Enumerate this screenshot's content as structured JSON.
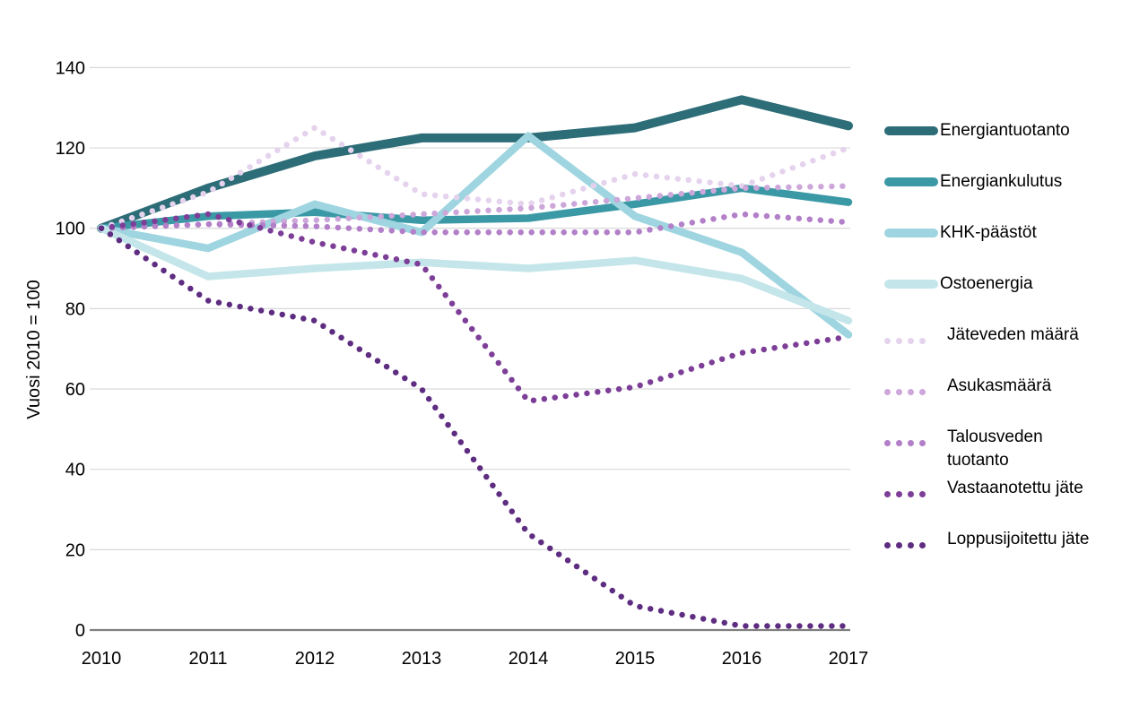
{
  "page": {
    "background": "#ffffff"
  },
  "chart_data": {
    "type": "line",
    "title": "",
    "xlabel": "",
    "ylabel": "Vuosi 2010 = 100",
    "categories": [
      "2010",
      "2011",
      "2012",
      "2013",
      "2014",
      "2015",
      "2016",
      "2017"
    ],
    "ylim": [
      0,
      140
    ],
    "ytick_step": 20,
    "yticks": [
      0,
      20,
      40,
      60,
      80,
      100,
      120,
      140
    ],
    "grid": true,
    "legend_position": "right",
    "grid_color": "#d9d9d9",
    "axis_color": "#7f7f7f",
    "text_color": "#000000",
    "series": [
      {
        "name": "Energiantuotanto",
        "style": "solid",
        "width": 10,
        "color": "#2d6d77",
        "values": [
          100,
          110,
          118,
          122.5,
          122.5,
          125,
          132,
          125.5
        ]
      },
      {
        "name": "Energiankulutus",
        "style": "solid",
        "width": 8.5,
        "color": "#3b99a6",
        "values": [
          100,
          103,
          104,
          102,
          102.5,
          106,
          110,
          106.5
        ]
      },
      {
        "name": "KHK-päästöt",
        "style": "solid",
        "width": 8.5,
        "color": "#9fd5e0",
        "values": [
          100,
          95,
          106,
          99,
          123,
          103,
          94,
          73.5
        ]
      },
      {
        "name": "Ostoenergia",
        "style": "solid",
        "width": 8.5,
        "color": "#c4e6ea",
        "values": [
          100,
          88,
          90,
          91.5,
          90,
          92,
          87.5,
          77
        ]
      },
      {
        "name": "Jäteveden määrä",
        "style": "dotted",
        "width": 6.5,
        "color": "#e5d3ee",
        "values": [
          100,
          109,
          125,
          108.5,
          106,
          113.5,
          110.5,
          120
        ]
      },
      {
        "name": "Asukasmäärä",
        "style": "dotted",
        "width": 6.5,
        "color": "#cda6da",
        "values": [
          100,
          101,
          102,
          103.5,
          105,
          107.5,
          110,
          110.5
        ]
      },
      {
        "name": "Talousveden tuotanto",
        "style": "dotted",
        "width": 6.5,
        "color": "#b27fc8",
        "values": [
          100,
          101,
          100.5,
          99,
          99,
          99,
          103.5,
          101.5
        ]
      },
      {
        "name": "Vastaanotettu jäte",
        "style": "dotted",
        "width": 6.5,
        "color": "#7d3e98",
        "values": [
          100,
          103.5,
          96.5,
          91,
          57,
          60.5,
          69,
          73
        ]
      },
      {
        "name": "Loppusijoitettu jäte",
        "style": "dotted",
        "width": 6.5,
        "color": "#5e2c80",
        "values": [
          100,
          82,
          77,
          60,
          24,
          6,
          1,
          1
        ]
      }
    ]
  }
}
